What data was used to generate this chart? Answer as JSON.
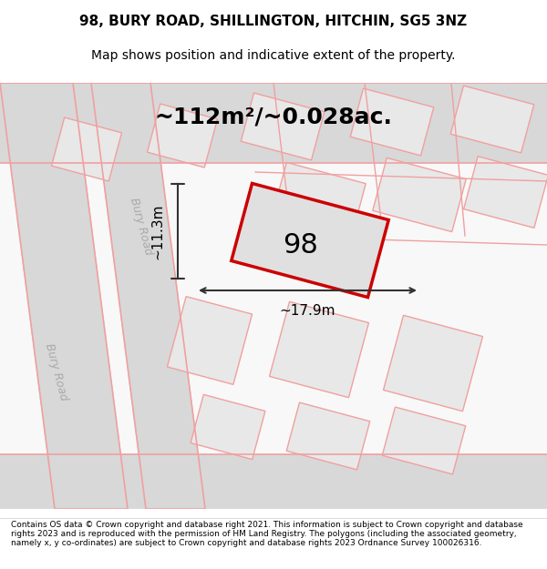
{
  "title_line1": "98, BURY ROAD, SHILLINGTON, HITCHIN, SG5 3NZ",
  "title_line2": "Map shows position and indicative extent of the property.",
  "area_text": "~112m²/~0.028ac.",
  "label_98": "98",
  "dim_width": "~17.9m",
  "dim_height": "~11.3m",
  "road_label1": "Bury Road",
  "road_label2": "Bury Road",
  "footer_text": "Contains OS data © Crown copyright and database right 2021. This information is subject to Crown copyright and database rights 2023 and is reproduced with the permission of HM Land Registry. The polygons (including the associated geometry, namely x, y co-ordinates) are subject to Crown copyright and database rights 2023 Ordnance Survey 100026316.",
  "bg_color": "#ffffff",
  "map_bg": "#f5f5f5",
  "road_fill": "#e0e0e0",
  "plot_outline_color": "#ff0000",
  "plot_fill_color": "#e8e8e8",
  "dim_line_color": "#333333",
  "road_line_color": "#f0a0a0",
  "footer_bg": "#ffffff"
}
